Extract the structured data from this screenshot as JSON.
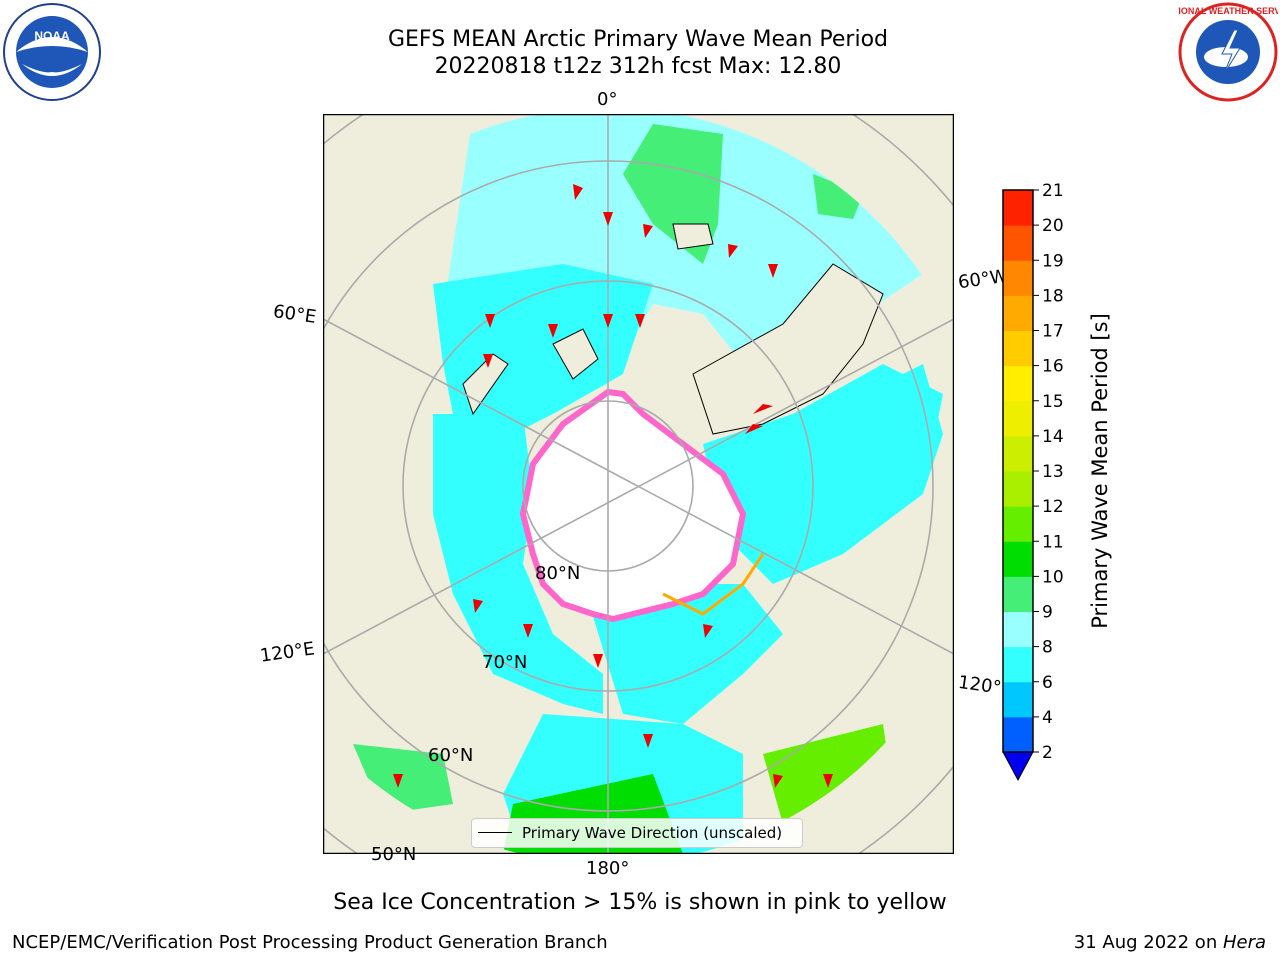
{
  "title": {
    "line1": "GEFS MEAN Arctic Primary Wave Mean Period",
    "line2": "20220818 t12z 312h fcst   Max: 12.80"
  },
  "map": {
    "lon_labels": {
      "top": "0°",
      "right_top": "60°W",
      "right_bottom": "120°W",
      "bottom": "180°",
      "left_bottom": "120°E",
      "left_top": "60°E"
    },
    "lat_labels": {
      "lat80": "80°N",
      "lat70": "70°N",
      "lat60": "60°N",
      "lat50": "50°N"
    },
    "legend": "Primary Wave Direction (unscaled)",
    "colors": {
      "land": "#efeedc",
      "ocean_default": "#33ffff",
      "ice": "#ffffff",
      "ice_edge": "#ff66cc"
    }
  },
  "colorbar": {
    "label": "Primary Wave Mean Period [s]",
    "ticks": [
      "2",
      "4",
      "6",
      "8",
      "9",
      "10",
      "11",
      "12",
      "13",
      "14",
      "15",
      "16",
      "17",
      "18",
      "19",
      "20",
      "21"
    ],
    "colors": [
      "#0060ff",
      "#00c8ff",
      "#33ffff",
      "#99ffff",
      "#44ee77",
      "#00dd00",
      "#66ee00",
      "#aaee00",
      "#ccee00",
      "#eeee00",
      "#ffee00",
      "#ffcc00",
      "#ffaa00",
      "#ff8800",
      "#ff5500",
      "#ff2200"
    ],
    "extend_color": "#0000ee"
  },
  "subtitle": "Sea Ice Concentration > 15% is shown in pink to yellow",
  "footer": {
    "left": "NCEP/EMC/Verification Post Processing Product Generation Branch",
    "right_date": "31 Aug 2022 on ",
    "right_system": "Hera"
  },
  "logos": {
    "noaa_text": "NOAA",
    "nws_text": "NATIONAL WEATHER SERVICE"
  }
}
